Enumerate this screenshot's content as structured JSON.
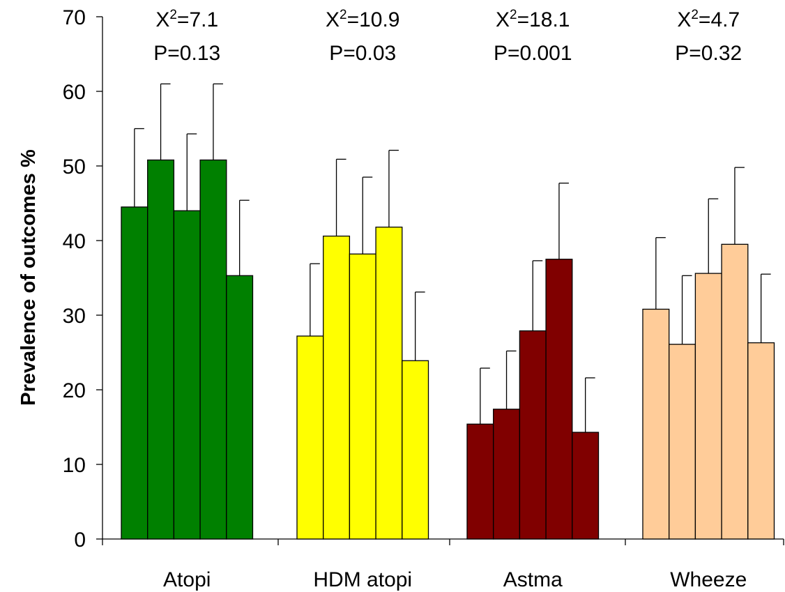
{
  "chart_data": {
    "type": "bar",
    "ylabel": "Prevalence of outcomes %",
    "xlabel": "",
    "ylim": [
      0,
      70
    ],
    "yticks": [
      0,
      10,
      20,
      30,
      40,
      50,
      60,
      70
    ],
    "grid": false,
    "groups": [
      {
        "category": "Atopi",
        "color": "#008000",
        "values": [
          44.5,
          50.8,
          44.0,
          50.8,
          35.3
        ],
        "error_upper": [
          55.0,
          61.0,
          54.3,
          61.0,
          45.4
        ],
        "annotation": {
          "stat_prefix": "X",
          "stat_exp": "2",
          "stat_value": "=7.1",
          "p": "P=0.13"
        }
      },
      {
        "category": "HDM atopi",
        "color": "#ffff00",
        "values": [
          27.2,
          40.6,
          38.2,
          41.8,
          23.9
        ],
        "error_upper": [
          36.9,
          50.9,
          48.5,
          52.1,
          33.1
        ],
        "annotation": {
          "stat_prefix": "X",
          "stat_exp": "2",
          "stat_value": "=10.9",
          "p": "P=0.03"
        }
      },
      {
        "category": "Astma",
        "color": "#800000",
        "values": [
          15.4,
          17.4,
          27.9,
          37.5,
          14.3
        ],
        "error_upper": [
          22.9,
          25.2,
          37.3,
          47.7,
          21.6
        ],
        "annotation": {
          "stat_prefix": "X",
          "stat_exp": "2",
          "stat_value": "=18.1",
          "p": "P=0.001"
        }
      },
      {
        "category": "Wheeze",
        "color": "#ffcc99",
        "values": [
          30.8,
          26.1,
          35.6,
          39.5,
          26.3
        ],
        "error_upper": [
          40.4,
          35.3,
          45.6,
          49.8,
          35.5
        ],
        "annotation": {
          "stat_prefix": "X",
          "stat_exp": "2",
          "stat_value": "=4.7",
          "p": "P=0.32"
        }
      }
    ]
  }
}
